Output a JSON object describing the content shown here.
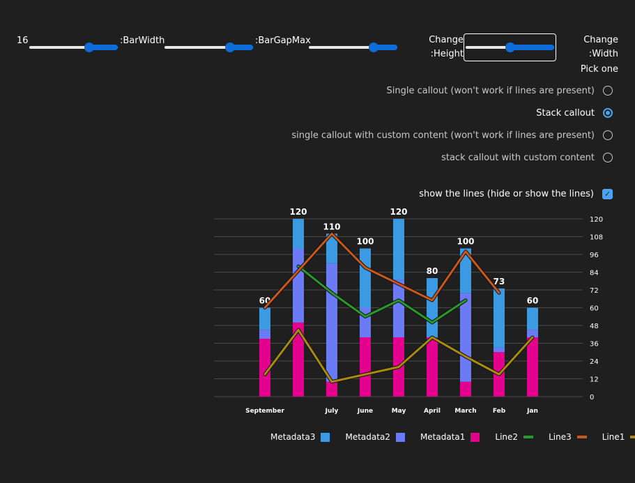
{
  "controls": {
    "bar_width": {
      "value": "16",
      "label": ":BarWidth",
      "level": 0.68
    },
    "bar_gap_max": {
      "label": ":BarGapMax",
      "level": 0.74
    },
    "change_height": {
      "level": 0.73,
      "label_line1": "Change",
      "label_line2": ":Height"
    },
    "change_width": {
      "level": 0.5,
      "label_line1": "Change",
      "label_line2": ":Width"
    }
  },
  "callout_options": {
    "title": "Pick one",
    "options": [
      {
        "label": "Single callout (won't work if lines are present)",
        "selected": false
      },
      {
        "label": "Stack callout",
        "selected": true
      },
      {
        "label": "single callout with custom content (won't work if lines are present)",
        "selected": false
      },
      {
        "label": "stack callout with custom content",
        "selected": false
      }
    ]
  },
  "show_lines": {
    "label": "show the lines (hide or show the lines)",
    "checked": true,
    "check_glyph": "✓"
  },
  "colors": {
    "metadata1": "#e3008c",
    "metadata2": "#6b7af5",
    "metadata3": "#3b9ae1",
    "line1": "#aa8b0d",
    "line2": "#2a9a2a",
    "line3": "#c9581a",
    "accent": "#0f6cdb"
  },
  "chart_data": {
    "type": "bar",
    "categories": [
      "September",
      "",
      "July",
      "June",
      "May",
      "April",
      "March",
      "Feb",
      "Jan"
    ],
    "totals": [
      "60",
      "120",
      "110",
      "100",
      "120",
      "80",
      "100",
      "73",
      "60"
    ],
    "series": [
      {
        "name": "Metadata1",
        "values": [
          39,
          50,
          10,
          40,
          40,
          40,
          10,
          30,
          40
        ]
      },
      {
        "name": "Metadata2",
        "values": [
          6,
          50,
          80,
          20,
          39,
          0,
          60,
          3,
          5
        ]
      },
      {
        "name": "Metadata3",
        "values": [
          15,
          20,
          20,
          40,
          41,
          40,
          30,
          40,
          15
        ]
      }
    ],
    "lines": [
      {
        "name": "Line1",
        "values": [
          15,
          45,
          10,
          15,
          20,
          40,
          27,
          15,
          40
        ]
      },
      {
        "name": "Line2",
        "values": [
          null,
          88,
          70,
          54,
          65,
          50,
          65,
          null,
          null
        ]
      },
      {
        "name": "Line3",
        "values": [
          60,
          85,
          110,
          87,
          76,
          65,
          98,
          70,
          null
        ]
      }
    ],
    "ylim": [
      0,
      120
    ],
    "yticks": [
      "0",
      "12",
      "24",
      "36",
      "48",
      "60",
      "72",
      "84",
      "96",
      "108",
      "120"
    ],
    "grid": true,
    "legend": [
      {
        "name": "Metadata3",
        "key": "metadata3",
        "kind": "box"
      },
      {
        "name": "Metadata2",
        "key": "metadata2",
        "kind": "box"
      },
      {
        "name": "Metadata1",
        "key": "metadata1",
        "kind": "box"
      },
      {
        "name": "Line2",
        "key": "line2",
        "kind": "line"
      },
      {
        "name": "Line3",
        "key": "line3",
        "kind": "line"
      },
      {
        "name": "Line1",
        "key": "line1",
        "kind": "line"
      }
    ]
  }
}
